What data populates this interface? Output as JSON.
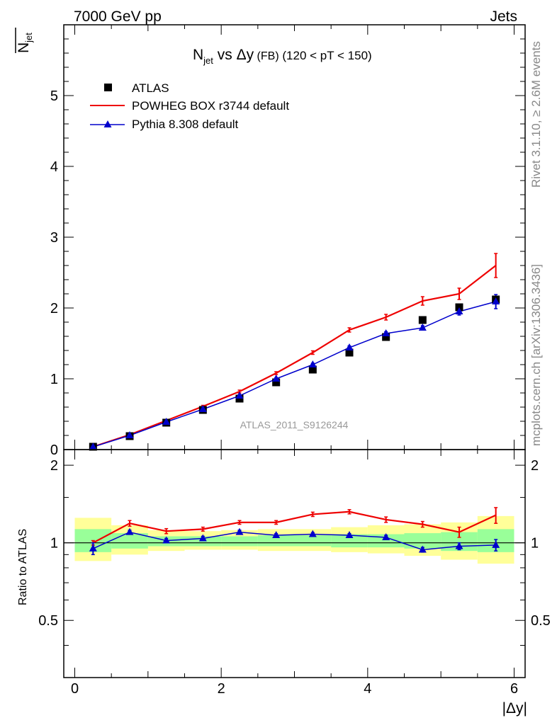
{
  "header": {
    "left": "7000 GeV pp",
    "right": "Jets"
  },
  "side_text": {
    "rivet": "Rivet 3.1.10, ≥ 2.6M events",
    "mcplots": "mcplots.cern.ch [arXiv:1306.3436]"
  },
  "chart_data": [
    {
      "type": "scatter",
      "title": {
        "main": "N",
        "sub": "jet",
        "rest": " vs Δy",
        "tag": " (FB)",
        "cut": " (120 < pT < 150)"
      },
      "ylabel": {
        "main": "N",
        "sub": "jet",
        "overline": true
      },
      "watermark": "ATLAS_2011_S9126244",
      "xlim": [
        -0.15,
        6.15
      ],
      "ylim": [
        0,
        6
      ],
      "log_y": false,
      "yticks": [
        0,
        1,
        2,
        3,
        4,
        5
      ],
      "ytick_labels": [
        "0",
        "1",
        "2",
        "3",
        "4",
        "5"
      ],
      "legend_placement": "top-left",
      "grid": false,
      "x": [
        0.25,
        0.75,
        1.25,
        1.75,
        2.25,
        2.75,
        3.25,
        3.75,
        4.25,
        4.75,
        5.25,
        5.75
      ],
      "x_bin_edges": [
        0,
        0.5,
        1,
        1.5,
        2,
        2.5,
        3,
        3.5,
        4,
        4.5,
        5,
        5.5,
        6
      ],
      "series": [
        {
          "name": "ATLAS",
          "style": "marker-square",
          "color": "#000000",
          "values": [
            0.04,
            0.19,
            0.38,
            0.56,
            0.72,
            0.95,
            1.13,
            1.37,
            1.59,
            1.83,
            2.01,
            2.12
          ]
        },
        {
          "name": "POWHEG BOX r3744 default",
          "style": "line",
          "color": "#ee0000",
          "values": [
            0.04,
            0.21,
            0.41,
            0.61,
            0.82,
            1.08,
            1.37,
            1.69,
            1.87,
            2.1,
            2.2,
            2.6
          ],
          "errors": [
            0.005,
            0.01,
            0.012,
            0.015,
            0.02,
            0.02,
            0.025,
            0.03,
            0.04,
            0.06,
            0.08,
            0.17
          ]
        },
        {
          "name": "Pythia 8.308 default",
          "style": "line-triangle",
          "color": "#0000cc",
          "values": [
            0.038,
            0.2,
            0.39,
            0.57,
            0.76,
            1.0,
            1.2,
            1.44,
            1.64,
            1.72,
            1.95,
            2.09
          ],
          "errors": [
            0.004,
            0.008,
            0.01,
            0.012,
            0.015,
            0.015,
            0.02,
            0.025,
            0.025,
            0.03,
            0.05,
            0.1
          ]
        }
      ]
    },
    {
      "type": "scatter",
      "ylabel": "Ratio to ATLAS",
      "xlabel": "|Δy|",
      "xlim": [
        -0.15,
        6.15
      ],
      "ylim": [
        0.3,
        2.3
      ],
      "log_y": true,
      "xticks": [
        0,
        2,
        4,
        6
      ],
      "xtick_labels": [
        "0",
        "2",
        "4",
        "6"
      ],
      "yticks": [
        0.5,
        1,
        2
      ],
      "ytick_labels": [
        "0.5",
        "1",
        "2"
      ],
      "reference_line": 1,
      "x": [
        0.25,
        0.75,
        1.25,
        1.75,
        2.25,
        2.75,
        3.25,
        3.75,
        4.25,
        4.75,
        5.25,
        5.75
      ],
      "x_bin_edges": [
        0,
        0.5,
        1,
        1.5,
        2,
        2.5,
        3,
        3.5,
        4,
        4.5,
        5,
        5.5,
        6
      ],
      "bands": [
        {
          "kind": "total uncertainty",
          "color": "#ffff99",
          "lo": [
            0.85,
            0.9,
            0.93,
            0.94,
            0.94,
            0.93,
            0.93,
            0.92,
            0.91,
            0.89,
            0.86,
            0.83
          ],
          "hi": [
            1.25,
            1.17,
            1.12,
            1.11,
            1.12,
            1.13,
            1.13,
            1.15,
            1.17,
            1.18,
            1.2,
            1.27
          ]
        },
        {
          "kind": "statistical uncertainty",
          "color": "#99ff99",
          "lo": [
            0.92,
            0.95,
            0.97,
            0.97,
            0.97,
            0.97,
            0.97,
            0.96,
            0.96,
            0.95,
            0.93,
            0.92
          ],
          "hi": [
            1.13,
            1.09,
            1.06,
            1.06,
            1.06,
            1.07,
            1.07,
            1.08,
            1.08,
            1.09,
            1.1,
            1.13
          ]
        }
      ],
      "series": [
        {
          "name": "POWHEG BOX r3744 default",
          "color": "#ee0000",
          "values": [
            1.0,
            1.19,
            1.11,
            1.13,
            1.2,
            1.2,
            1.29,
            1.32,
            1.23,
            1.18,
            1.1,
            1.28
          ],
          "errors": [
            0.02,
            0.03,
            0.025,
            0.02,
            0.02,
            0.02,
            0.025,
            0.025,
            0.03,
            0.03,
            0.05,
            0.09
          ]
        },
        {
          "name": "Pythia 8.308 default",
          "color": "#0000cc",
          "values": [
            0.95,
            1.1,
            1.02,
            1.04,
            1.1,
            1.07,
            1.08,
            1.07,
            1.05,
            0.94,
            0.97,
            0.98
          ],
          "errors": [
            0.05,
            0.02,
            0.02,
            0.02,
            0.02,
            0.015,
            0.015,
            0.015,
            0.02,
            0.02,
            0.03,
            0.05
          ]
        }
      ]
    }
  ]
}
